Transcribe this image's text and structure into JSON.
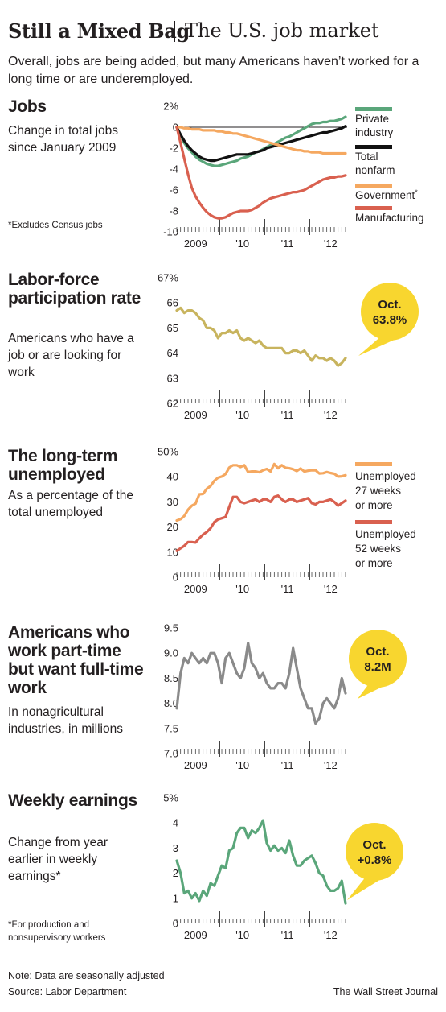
{
  "title": {
    "main": "Still a Mixed Bag",
    "sub": "The U.S. job market"
  },
  "intro": "Overall, jobs are being added, but many Americans haven’t worked for a long time or are underemployed.",
  "colors": {
    "green": "#5aa67a",
    "black": "#111111",
    "orange": "#f5a860",
    "red": "#d9604f",
    "tan": "#c8b45e",
    "gray": "#8a8a8a",
    "yellow": "#f8d62f"
  },
  "sections": {
    "jobs": {
      "heading": "Jobs",
      "desc": "Change in total jobs since January 2009",
      "footnote": "*Excludes Census jobs"
    },
    "labor": {
      "heading": "Labor-force participation rate",
      "desc": "Americans who have a job or are looking for work",
      "callout": [
        "Oct.",
        "63.8%"
      ]
    },
    "longterm": {
      "heading": "The long-term unemployed",
      "desc": "As a percentage of the total unemployed"
    },
    "parttime": {
      "heading": "Americans who work part-time but want full-time work",
      "desc": "In nonagricultural industries, in millions",
      "callout": [
        "Oct.",
        "8.2M"
      ]
    },
    "earnings": {
      "heading": "Weekly earnings",
      "desc": "Change from year earlier in weekly earnings*",
      "footnote": "*For production and nonsupervisory workers",
      "callout": [
        "Oct.",
        "+0.8%"
      ]
    }
  },
  "footer": {
    "note": "Note: Data are seasonally adjusted",
    "source": "Source: Labor Department",
    "brand": "The Wall Street Journal"
  },
  "chart_data": [
    {
      "id": "jobs",
      "type": "line",
      "ylim": [
        -10,
        2
      ],
      "yticks": [
        "2%",
        "0",
        "-2",
        "-4",
        "-6",
        "-8",
        "-10"
      ],
      "yticks_values": [
        2,
        0,
        -2,
        -4,
        -6,
        -8,
        -10
      ],
      "xticks": [
        "2009",
        "'10",
        "'11",
        "'12"
      ],
      "months": 46,
      "series": [
        {
          "name": "Private industry",
          "color": "#5aa67a",
          "values": [
            0,
            -0.8,
            -1.5,
            -2.0,
            -2.4,
            -2.8,
            -3.1,
            -3.3,
            -3.5,
            -3.6,
            -3.7,
            -3.7,
            -3.6,
            -3.5,
            -3.4,
            -3.3,
            -3.2,
            -3.0,
            -2.9,
            -2.8,
            -2.6,
            -2.4,
            -2.3,
            -2.1,
            -1.9,
            -1.7,
            -1.6,
            -1.4,
            -1.2,
            -1.0,
            -0.9,
            -0.7,
            -0.5,
            -0.3,
            -0.1,
            0.1,
            0.3,
            0.4,
            0.4,
            0.5,
            0.5,
            0.6,
            0.6,
            0.7,
            0.8,
            1.0
          ]
        },
        {
          "name": "Total nonfarm",
          "color": "#111111",
          "values": [
            0,
            -0.7,
            -1.3,
            -1.8,
            -2.2,
            -2.5,
            -2.8,
            -3.0,
            -3.1,
            -3.2,
            -3.2,
            -3.1,
            -3.0,
            -2.9,
            -2.8,
            -2.7,
            -2.6,
            -2.6,
            -2.6,
            -2.6,
            -2.5,
            -2.4,
            -2.3,
            -2.2,
            -2.0,
            -1.9,
            -1.8,
            -1.7,
            -1.6,
            -1.5,
            -1.4,
            -1.3,
            -1.2,
            -1.1,
            -1.0,
            -0.9,
            -0.8,
            -0.7,
            -0.6,
            -0.5,
            -0.5,
            -0.4,
            -0.3,
            -0.2,
            -0.1,
            0.1
          ]
        },
        {
          "name": "Government",
          "footnote_mark": "*",
          "color": "#f5a860",
          "values": [
            0,
            0,
            -0.1,
            -0.1,
            -0.2,
            -0.2,
            -0.2,
            -0.3,
            -0.3,
            -0.3,
            -0.3,
            -0.4,
            -0.4,
            -0.5,
            -0.5,
            -0.6,
            -0.6,
            -0.7,
            -0.8,
            -0.9,
            -1.0,
            -1.1,
            -1.2,
            -1.3,
            -1.4,
            -1.5,
            -1.6,
            -1.7,
            -1.8,
            -1.9,
            -2.0,
            -2.1,
            -2.2,
            -2.2,
            -2.3,
            -2.3,
            -2.4,
            -2.4,
            -2.4,
            -2.5,
            -2.5,
            -2.5,
            -2.5,
            -2.5,
            -2.5,
            -2.5
          ]
        },
        {
          "name": "Manufacturing",
          "color": "#d9604f",
          "values": [
            0,
            -1.5,
            -3.0,
            -4.5,
            -5.8,
            -6.6,
            -7.2,
            -7.7,
            -8.1,
            -8.4,
            -8.6,
            -8.7,
            -8.7,
            -8.6,
            -8.4,
            -8.2,
            -8.1,
            -8.0,
            -8.0,
            -8.0,
            -7.9,
            -7.7,
            -7.5,
            -7.2,
            -7.0,
            -6.8,
            -6.7,
            -6.6,
            -6.5,
            -6.4,
            -6.3,
            -6.2,
            -6.2,
            -6.1,
            -6.0,
            -5.8,
            -5.6,
            -5.4,
            -5.2,
            -5.0,
            -4.9,
            -4.8,
            -4.8,
            -4.7,
            -4.7,
            -4.6
          ]
        }
      ]
    },
    {
      "id": "labor",
      "type": "line",
      "ylim": [
        62,
        67
      ],
      "yticks": [
        "67%",
        "66",
        "65",
        "64",
        "63",
        "62"
      ],
      "yticks_values": [
        67,
        66,
        65,
        64,
        63,
        62
      ],
      "xticks": [
        "2009",
        "'10",
        "'11",
        "'12"
      ],
      "months": 46,
      "series": [
        {
          "name": "Participation rate",
          "color": "#c8b45e",
          "values": [
            65.7,
            65.8,
            65.6,
            65.7,
            65.7,
            65.6,
            65.4,
            65.3,
            65.0,
            65.0,
            64.9,
            64.6,
            64.8,
            64.8,
            64.9,
            64.8,
            64.9,
            64.6,
            64.5,
            64.6,
            64.5,
            64.4,
            64.5,
            64.3,
            64.2,
            64.2,
            64.2,
            64.2,
            64.2,
            64.0,
            64.0,
            64.1,
            64.1,
            64.0,
            64.1,
            63.9,
            63.7,
            63.9,
            63.8,
            63.8,
            63.7,
            63.8,
            63.7,
            63.5,
            63.6,
            63.8
          ]
        }
      ]
    },
    {
      "id": "longterm",
      "type": "line",
      "ylim": [
        0,
        50
      ],
      "yticks": [
        "50%",
        "40",
        "30",
        "20",
        "10",
        "0"
      ],
      "yticks_values": [
        50,
        40,
        30,
        20,
        10,
        0
      ],
      "xticks": [
        "2009",
        "'10",
        "'11",
        "'12"
      ],
      "months": 46,
      "series": [
        {
          "name": "Unemployed 27 weeks or more",
          "color": "#f5a860",
          "values": [
            22.6,
            23.1,
            24.4,
            26.9,
            28.5,
            29.3,
            33.0,
            33.2,
            35.2,
            36.3,
            38.4,
            39.6,
            40.1,
            41.1,
            43.7,
            44.6,
            44.6,
            43.9,
            44.6,
            41.9,
            42.1,
            42.1,
            41.8,
            42.6,
            43.1,
            42.1,
            45.1,
            43.4,
            44.6,
            43.6,
            43.4,
            43.0,
            42.3,
            43.3,
            42.1,
            42.4,
            42.6,
            42.6,
            41.3,
            41.4,
            41.9,
            41.5,
            41.2,
            40.1,
            40.2,
            40.6
          ]
        },
        {
          "name": "Unemployed 52 weeks or more",
          "color": "#d9604f",
          "values": [
            10.5,
            11.5,
            12.5,
            14.0,
            14.0,
            13.8,
            15.5,
            17.0,
            18.0,
            19.5,
            22.0,
            23.0,
            23.5,
            24.0,
            28.0,
            32.0,
            32.0,
            30.0,
            29.5,
            30.0,
            30.5,
            31.0,
            30.0,
            31.0,
            31.0,
            30.0,
            32.0,
            32.5,
            31.0,
            30.0,
            31.0,
            31.0,
            30.0,
            30.5,
            31.0,
            31.5,
            29.5,
            29.0,
            30.0,
            30.0,
            30.5,
            31.0,
            30.0,
            28.5,
            29.5,
            30.5
          ]
        }
      ]
    },
    {
      "id": "parttime",
      "type": "line",
      "ylim": [
        7.0,
        9.5
      ],
      "yticks": [
        "9.5",
        "9.0",
        "8.5",
        "8.0",
        "7.5",
        "7.0"
      ],
      "yticks_values": [
        9.5,
        9.0,
        8.5,
        8.0,
        7.5,
        7.0
      ],
      "xticks": [
        "2009",
        "'10",
        "'11",
        "'12"
      ],
      "months": 46,
      "series": [
        {
          "name": "Part-time for economic reasons",
          "color": "#8a8a8a",
          "values": [
            7.9,
            8.6,
            8.9,
            8.8,
            9.0,
            8.9,
            8.8,
            8.9,
            8.8,
            9.0,
            9.0,
            8.8,
            8.4,
            8.9,
            9.0,
            8.8,
            8.6,
            8.5,
            8.7,
            9.2,
            8.8,
            8.7,
            8.5,
            8.6,
            8.4,
            8.3,
            8.3,
            8.4,
            8.4,
            8.3,
            8.6,
            9.1,
            8.7,
            8.3,
            8.1,
            7.9,
            7.9,
            7.6,
            7.7,
            8.0,
            8.1,
            8.0,
            7.9,
            8.1,
            8.5,
            8.2
          ]
        }
      ]
    },
    {
      "id": "earnings",
      "type": "line",
      "ylim": [
        0,
        5
      ],
      "yticks": [
        "5%",
        "4",
        "3",
        "2",
        "1",
        "0"
      ],
      "yticks_values": [
        5,
        4,
        3,
        2,
        1,
        0
      ],
      "xticks": [
        "2009",
        "'10",
        "'11",
        "'12"
      ],
      "months": 46,
      "series": [
        {
          "name": "Weekly earnings change",
          "color": "#5aa67a",
          "values": [
            2.5,
            2.0,
            1.2,
            1.3,
            1.0,
            1.2,
            0.9,
            1.3,
            1.1,
            1.6,
            1.5,
            1.9,
            2.3,
            2.2,
            2.9,
            3.0,
            3.6,
            3.8,
            3.8,
            3.4,
            3.7,
            3.6,
            3.8,
            4.1,
            3.2,
            2.9,
            3.1,
            2.9,
            3.0,
            2.8,
            3.3,
            2.7,
            2.3,
            2.3,
            2.5,
            2.6,
            2.7,
            2.4,
            2.0,
            1.9,
            1.5,
            1.3,
            1.3,
            1.4,
            1.7,
            0.8
          ]
        }
      ]
    }
  ]
}
